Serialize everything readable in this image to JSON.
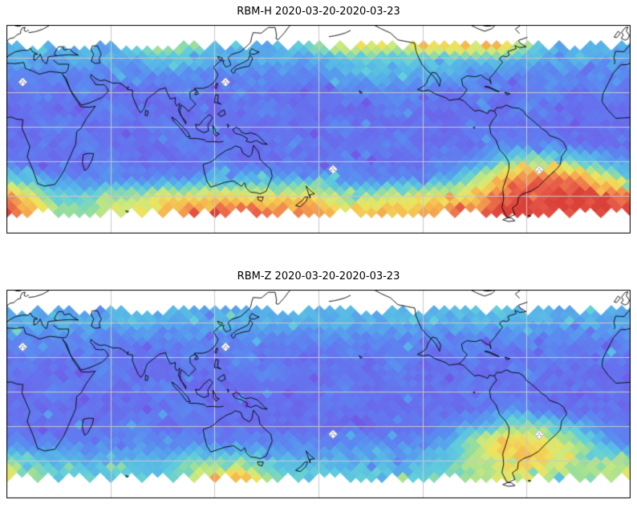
{
  "panels": [
    {
      "title": "RBM-H 2020-03-20-2020-03-23"
    },
    {
      "title": "RBM-Z 2020-03-20-2020-03-23"
    }
  ],
  "style": {
    "background": "#ffffff",
    "frame_color": "#000000",
    "coastline_color": "#000000",
    "gridline_color": "#c9c9c9",
    "marker_fill": "#ffffff",
    "marker_stroke": "#9a9aa8",
    "marker_dot_color": "#777788",
    "colormap": [
      {
        "v": 0.0,
        "color": "#7059e6"
      },
      {
        "v": 0.12,
        "color": "#6671ee"
      },
      {
        "v": 0.24,
        "color": "#5a8cf0"
      },
      {
        "v": 0.34,
        "color": "#56b2e9"
      },
      {
        "v": 0.45,
        "color": "#62cfda"
      },
      {
        "v": 0.55,
        "color": "#9fdf96"
      },
      {
        "v": 0.63,
        "color": "#cfe97c"
      },
      {
        "v": 0.7,
        "color": "#f0e25c"
      },
      {
        "v": 0.8,
        "color": "#f6b24e"
      },
      {
        "v": 0.88,
        "color": "#f0834e"
      },
      {
        "v": 0.94,
        "color": "#e65a48"
      },
      {
        "v": 1.0,
        "color": "#da4138"
      }
    ]
  },
  "chart_data": [
    {
      "type": "heatmap",
      "title": "RBM-H 2020-03-20-2020-03-23",
      "projection": "equirectangular world map, Pacific-centered",
      "lon_range": [
        0,
        360
      ],
      "lat_range": [
        -62,
        59
      ],
      "data_lat_extent": [
        -50.5,
        47.5
      ],
      "grid_lon_step_deg": 15,
      "grid_lat_rows_deg": [
        50,
        40,
        30,
        20,
        10,
        0,
        -10,
        -20,
        -30,
        -40,
        -50
      ],
      "value_scale": "relative intensity 0-9 (0=low blue, 9=high red)",
      "values_rows": [
        "333335654334677788886333",
        "333333443333344444443333",
        "222222222222233333222222",
        "121211121211122221211212",
        "111121111121111211112111",
        "112111211111121111211111",
        "111211121112111211122211",
        "211121112111121112245543",
        "432222223333322223578886",
        "864455666666655666789999",
        "975566789988877778899999"
      ],
      "gridlines": {
        "lon": [
          60,
          120,
          180,
          240,
          300
        ],
        "lat": [
          40,
          20,
          0,
          -20,
          -40
        ]
      },
      "markers": [
        {
          "lon": 9.4,
          "lat": 25.8
        },
        {
          "lon": 126.4,
          "lat": 25.8
        },
        {
          "lon": 188.4,
          "lat": -24.8
        },
        {
          "lon": 307.3,
          "lat": -25.1
        }
      ]
    },
    {
      "type": "heatmap",
      "title": "RBM-Z 2020-03-20-2020-03-23",
      "projection": "equirectangular world map, Pacific-centered",
      "lon_range": [
        0,
        360
      ],
      "lat_range": [
        -62,
        59
      ],
      "data_lat_extent": [
        -50.5,
        47.5
      ],
      "grid_lon_step_deg": 15,
      "grid_lat_rows_deg": [
        50,
        40,
        30,
        20,
        10,
        0,
        -10,
        -20,
        -30,
        -40,
        -50
      ],
      "value_scale": "relative intensity 0-9 (0=low blue, 9=high red)",
      "values_rows": [
        "333333333333333333443333",
        "333333333333333333333333",
        "222222222222222222222222",
        "121211121211121211211212",
        "111121111121111211112111",
        "112111211111121111211111",
        "111111121111111111122111",
        "111112111111111112345432",
        "222222222222222223577653",
        "543333344443333334567655",
        "654444457754444445566555"
      ],
      "gridlines": {
        "lon": [
          60,
          120,
          180,
          240,
          300
        ],
        "lat": [
          40,
          20,
          0,
          -20,
          -40
        ]
      },
      "markers": [
        {
          "lon": 9.4,
          "lat": 25.8
        },
        {
          "lon": 126.4,
          "lat": 25.8
        },
        {
          "lon": 188.4,
          "lat": -24.8
        },
        {
          "lon": 307.3,
          "lat": -25.1
        }
      ]
    }
  ]
}
